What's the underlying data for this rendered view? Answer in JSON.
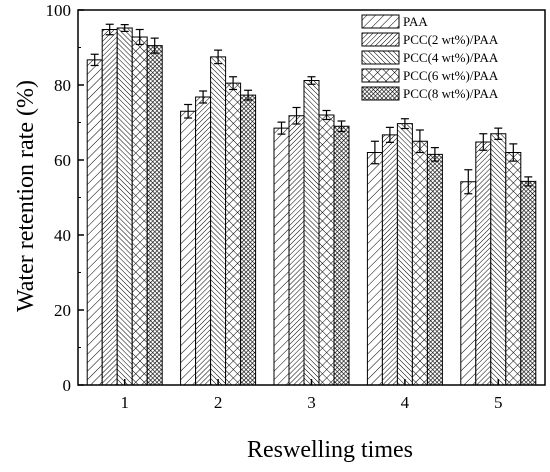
{
  "chart_data": {
    "type": "bar",
    "xlabel": "Reswelling times",
    "ylabel": "Water retention rate (%)",
    "ylim": [
      0,
      100
    ],
    "yticks": [
      0,
      20,
      40,
      60,
      80,
      100
    ],
    "categories": [
      "1",
      "2",
      "3",
      "4",
      "5"
    ],
    "grid": false,
    "legend_position": "top-right",
    "series": [
      {
        "name": "PAA",
        "pattern": "diag-right-sparse",
        "values": [
          86.7,
          73.0,
          68.5,
          62.0,
          54.2
        ],
        "errors": [
          1.5,
          1.8,
          1.6,
          3.0,
          3.2
        ]
      },
      {
        "name": "PCC(2 wt%)/PAA",
        "pattern": "diag-right-dense",
        "values": [
          94.8,
          76.8,
          71.8,
          66.7,
          64.8
        ],
        "errors": [
          1.4,
          1.6,
          2.2,
          2.0,
          2.2
        ]
      },
      {
        "name": "PCC(4 wt%)/PAA",
        "pattern": "diag-left-dense",
        "values": [
          95.2,
          87.5,
          81.2,
          69.7,
          67.0
        ],
        "errors": [
          0.9,
          1.8,
          1.0,
          1.3,
          1.5
        ]
      },
      {
        "name": "PCC(6 wt%)/PAA",
        "pattern": "cross-hatch",
        "values": [
          92.8,
          80.5,
          72.0,
          65.0,
          62.0
        ],
        "errors": [
          2.0,
          1.7,
          1.2,
          3.0,
          2.3
        ]
      },
      {
        "name": "PCC(8 wt%)/PAA",
        "pattern": "dense-cross",
        "values": [
          90.5,
          77.3,
          69.0,
          61.5,
          54.3
        ],
        "errors": [
          2.0,
          1.3,
          1.4,
          1.8,
          1.2
        ]
      }
    ]
  }
}
